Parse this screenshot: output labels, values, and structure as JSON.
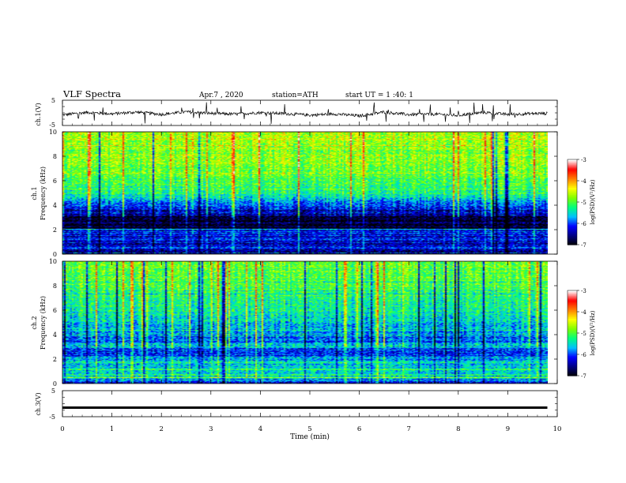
{
  "header": {
    "title": "VLF Spectra",
    "date": "Apr.7 , 2020",
    "station": "station=ATH",
    "start": "start UT = 1 :40: 1"
  },
  "colors": {
    "background": "#ffffff",
    "axis": "#000000",
    "colormap": [
      "#000000",
      "#00007f",
      "#0000ff",
      "#00bfff",
      "#00ff80",
      "#80ff00",
      "#ffff00",
      "#ff8000",
      "#ff0000",
      "#ffffff"
    ]
  },
  "chart_data": [
    {
      "type": "line",
      "name": "ch1-waveform",
      "ylabel": "ch.1(V)",
      "ylim": [
        -5,
        5
      ],
      "y_ticks": [
        "5",
        "-5"
      ],
      "xlim": [
        0,
        10
      ],
      "x": [
        0,
        0.5,
        1,
        1.5,
        2,
        2.5,
        3,
        3.5,
        4,
        4.5,
        5,
        5.5,
        6,
        6.5,
        7,
        7.5,
        8,
        8.5,
        9,
        9.5,
        9.8
      ],
      "values": [
        -0.8,
        0.2,
        -0.4,
        0.3,
        -0.6,
        0.4,
        -0.2,
        -0.5,
        0.1,
        -0.3,
        -0.9,
        -0.4,
        -1.2,
        0.3,
        -0.7,
        -0.5,
        -1.0,
        0.2,
        -0.6,
        -0.3,
        -0.2
      ]
    },
    {
      "type": "heatmap",
      "name": "ch1-spectrogram",
      "ylabel": "ch.1\nFrequency (kHz)",
      "ylim": [
        0,
        10
      ],
      "xlim": [
        0,
        9.8
      ],
      "y_ticks": [
        "0",
        "2",
        "4",
        "6",
        "8",
        "10"
      ],
      "colorbar": {
        "label": "log(PSD)(V²/Hz)",
        "range": [
          -7,
          -3
        ],
        "ticks": [
          "-3",
          "-4",
          "-5",
          "-6",
          "-7"
        ]
      },
      "band_profile": [
        {
          "f": 0.0,
          "level": -7
        },
        {
          "f": 0.5,
          "level": -6.2
        },
        {
          "f": 1.0,
          "level": -6.3
        },
        {
          "f": 1.8,
          "level": -6.1
        },
        {
          "f": 2.4,
          "level": -6.8
        },
        {
          "f": 3.2,
          "level": -6.5
        },
        {
          "f": 4.2,
          "level": -5.8
        },
        {
          "f": 5.0,
          "level": -5.2
        },
        {
          "f": 6.5,
          "level": -4.9
        },
        {
          "f": 8.0,
          "level": -4.7
        },
        {
          "f": 10.0,
          "level": -4.6
        }
      ]
    },
    {
      "type": "heatmap",
      "name": "ch2-spectrogram",
      "ylabel": "ch.2\nFrequency (kHz)",
      "ylim": [
        0,
        10
      ],
      "xlim": [
        0,
        9.8
      ],
      "y_ticks": [
        "0",
        "2",
        "4",
        "6",
        "8",
        "10"
      ],
      "colorbar": {
        "label": "log(PSD)(V²/Hz)",
        "range": [
          -7,
          -3
        ],
        "ticks": [
          "-3",
          "-4",
          "-5",
          "-6",
          "-7"
        ]
      },
      "band_profile": [
        {
          "f": 0.0,
          "level": -6.3
        },
        {
          "f": 0.5,
          "level": -5.4
        },
        {
          "f": 1.2,
          "level": -5.3
        },
        {
          "f": 2.0,
          "level": -5.5
        },
        {
          "f": 2.5,
          "level": -6.2
        },
        {
          "f": 3.0,
          "level": -5.6
        },
        {
          "f": 3.8,
          "level": -5.9
        },
        {
          "f": 4.6,
          "level": -5.6
        },
        {
          "f": 6.0,
          "level": -5.3
        },
        {
          "f": 8.0,
          "level": -5.0
        },
        {
          "f": 10.0,
          "level": -4.9
        }
      ]
    },
    {
      "type": "line",
      "name": "ch3-waveform",
      "ylabel": "ch.3(V)",
      "ylim": [
        -5,
        5
      ],
      "y_ticks": [
        "5",
        "-5"
      ],
      "xlim": [
        0,
        10
      ],
      "x": [
        0,
        9.8
      ],
      "values": [
        -1.5,
        -1.5
      ]
    }
  ],
  "x_axis": {
    "label": "Time (min)",
    "ticks": [
      "0",
      "1",
      "2",
      "3",
      "4",
      "5",
      "6",
      "7",
      "8",
      "9",
      "10"
    ],
    "range": [
      0,
      10
    ]
  }
}
